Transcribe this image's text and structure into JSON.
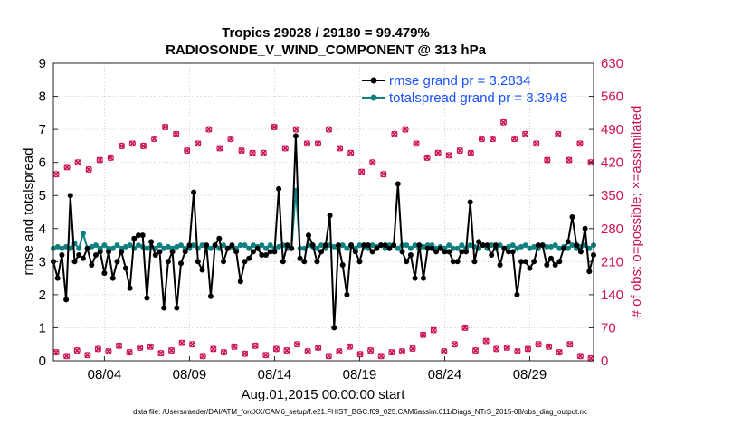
{
  "colors": {
    "rmse": "#000000",
    "spread": "#0f8080",
    "obs": "#cc1155",
    "axis": "#262626",
    "legend_text": "#1a53ff"
  },
  "chart_data": {
    "type": "line",
    "title": [
      "Tropics 29028 / 29180 = 99.479%",
      "RADIOSONDE_V_WIND_COMPONENT @ 313 hPa"
    ],
    "xlabel": "Aug.01,2015 00:00:00 start",
    "ylabel": "rmse and totalspread",
    "y2label": "# of obs: o=possible; ×=assimilated",
    "footnote": "data file: /Users/raeder/DAI/ATM_forcXX/CAM6_setup/f.e21.FHIST_BGC.f09_025.CAM6assim.011/Diags_NTrS_2015-08/obs_diag_output.nc",
    "xlim": [
      1,
      32.75
    ],
    "ylim": [
      0,
      9
    ],
    "y2lim": [
      0,
      630
    ],
    "x_tick_positions": [
      4,
      9,
      14,
      19,
      24,
      29
    ],
    "x_tick_labels": [
      "08/04",
      "08/09",
      "08/14",
      "08/19",
      "08/24",
      "08/29"
    ],
    "y_ticks": [
      0,
      1,
      2,
      3,
      4,
      5,
      6,
      7,
      8,
      9
    ],
    "y2_ticks": [
      0,
      70,
      140,
      210,
      280,
      350,
      420,
      490,
      560,
      630
    ],
    "x_start": 1.0,
    "x_step": 0.25,
    "legend": [
      "rmse grand pr = 3.2834",
      "totalspread grand pr = 3.3948"
    ],
    "series": [
      {
        "name": "rmse",
        "values": [
          3.0,
          2.5,
          3.2,
          1.85,
          5.0,
          3.0,
          3.2,
          3.1,
          3.4,
          2.9,
          3.2,
          3.3,
          2.65,
          3.3,
          2.5,
          3.0,
          3.3,
          2.8,
          2.2,
          3.7,
          3.8,
          3.8,
          1.9,
          3.6,
          3.2,
          3.3,
          1.6,
          3.0,
          3.3,
          1.6,
          2.95,
          3.3,
          3.5,
          5.1,
          3.0,
          2.75,
          3.5,
          1.95,
          3.5,
          3.7,
          3.0,
          3.4,
          3.5,
          3.3,
          2.4,
          3.0,
          3.1,
          3.3,
          3.4,
          3.2,
          3.2,
          3.3,
          3.3,
          5.2,
          3.0,
          3.5,
          3.4,
          6.8,
          3.1,
          3.0,
          3.8,
          3.5,
          3.0,
          3.3,
          3.5,
          4.4,
          1.0,
          3.5,
          2.9,
          2.0,
          3.5,
          3.3,
          3.0,
          3.5,
          3.5,
          3.3,
          3.4,
          3.5,
          3.5,
          3.4,
          3.5,
          5.35,
          3.3,
          3.0,
          3.2,
          2.5,
          3.5,
          2.5,
          3.4,
          3.4,
          3.3,
          3.4,
          3.3,
          3.3,
          3.0,
          3.0,
          3.3,
          3.3,
          4.8,
          3.0,
          3.6,
          3.5,
          3.5,
          3.2,
          3.5,
          2.9,
          3.4,
          3.3,
          3.3,
          2.0,
          3.0,
          3.0,
          2.8,
          3.0,
          3.5,
          3.5,
          2.9,
          3.1,
          2.9,
          3.0,
          3.4,
          3.6,
          4.35,
          3.5,
          3.3,
          4.0,
          2.7,
          3.2
        ]
      },
      {
        "name": "totalspread",
        "values": [
          3.4,
          3.45,
          3.4,
          3.45,
          3.4,
          3.55,
          3.4,
          3.85,
          3.4,
          3.45,
          3.5,
          3.4,
          3.5,
          3.4,
          3.4,
          3.5,
          3.4,
          3.45,
          3.5,
          3.4,
          3.5,
          3.45,
          3.4,
          3.45,
          3.4,
          3.5,
          3.4,
          3.45,
          3.4,
          3.45,
          3.5,
          3.4,
          3.4,
          3.5,
          3.4,
          3.5,
          3.45,
          3.4,
          3.5,
          3.4,
          3.5,
          3.4,
          3.45,
          3.4,
          3.5,
          3.5,
          3.4,
          3.5,
          3.45,
          3.5,
          3.4,
          3.5,
          3.4,
          3.45,
          3.5,
          3.4,
          3.4,
          5.15,
          3.4,
          3.4,
          3.5,
          3.45,
          3.4,
          3.5,
          3.4,
          3.5,
          3.45,
          3.4,
          3.5,
          3.4,
          3.5,
          3.4,
          3.5,
          3.45,
          3.4,
          3.5,
          3.45,
          3.5,
          3.4,
          3.5,
          3.5,
          3.4,
          3.5,
          3.5,
          3.4,
          3.5,
          3.4,
          3.45,
          3.5,
          3.5,
          3.4,
          3.45,
          3.4,
          3.5,
          3.4,
          3.4,
          3.5,
          3.4,
          3.5,
          3.45,
          3.4,
          3.5,
          3.4,
          3.5,
          3.4,
          3.5,
          3.4,
          3.45,
          3.5,
          3.4,
          3.45,
          3.5,
          3.4,
          3.45,
          3.4,
          3.5,
          3.45,
          3.45,
          3.5,
          3.4,
          3.45,
          3.4,
          3.5,
          3.4,
          3.45,
          3.5,
          3.4,
          3.5
        ]
      },
      {
        "name": "obs_possible_high",
        "values": [
          395,
          410,
          420,
          405,
          425,
          430,
          455,
          460,
          455,
          470,
          495,
          480,
          445,
          460,
          490,
          450,
          470,
          445,
          440,
          440,
          495,
          450,
          490,
          460,
          460,
          490,
          450,
          440,
          400,
          420,
          395,
          480,
          490,
          460,
          430,
          440,
          435,
          445,
          440,
          470,
          470,
          505,
          470,
          480,
          460,
          425,
          480,
          425,
          460,
          420
        ]
      },
      {
        "name": "obs_possible_low",
        "values": [
          18,
          10,
          22,
          12,
          25,
          20,
          32,
          18,
          28,
          30,
          16,
          22,
          38,
          35,
          10,
          25,
          18,
          30,
          15,
          32,
          12,
          25,
          22,
          35,
          20,
          28,
          10,
          20,
          30,
          14,
          22,
          10,
          18,
          20,
          26,
          55,
          65,
          20,
          35,
          70,
          22,
          42,
          25,
          28,
          20,
          25,
          35,
          30,
          18,
          35,
          10,
          5
        ]
      }
    ]
  }
}
